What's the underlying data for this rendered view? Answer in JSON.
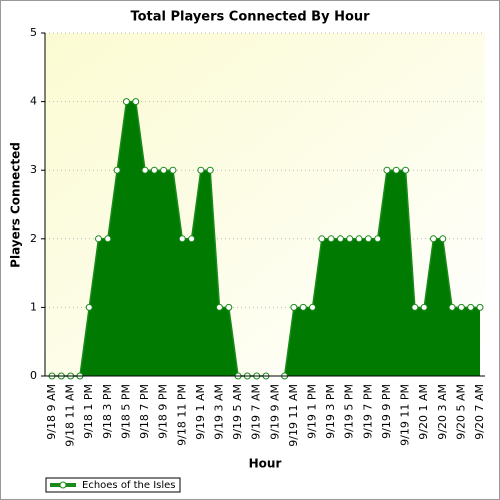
{
  "chart_data": {
    "type": "area",
    "title": "Total Players Connected By Hour",
    "x_label": "Hour",
    "y_label": "Players Connected",
    "categories": [
      "9/18 9 AM",
      null,
      "9/18 11 AM",
      null,
      "9/18 1 PM",
      null,
      "9/18 3 PM",
      null,
      "9/18 5 PM",
      null,
      "9/18 7 PM",
      null,
      "9/18 9 PM",
      null,
      "9/18 11 PM",
      null,
      "9/19 1 AM",
      null,
      "9/19 3 AM",
      null,
      "9/19 5 AM",
      null,
      "9/19 7 AM",
      null,
      "9/19 9 AM",
      null,
      "9/19 11 AM",
      null,
      "9/19 1 PM",
      null,
      "9/19 3 PM",
      null,
      "9/19 5 PM",
      null,
      "9/19 7 PM",
      null,
      "9/19 9 PM",
      null,
      "9/19 11 PM",
      null,
      "9/20 1 AM",
      null,
      "9/20 3 AM",
      null,
      "9/20 5 AM",
      null,
      "9/20 7 AM"
    ],
    "series": [
      {
        "name": "Echoes of the Isles",
        "color": "#1a8a1a",
        "values": [
          0,
          0,
          0,
          0,
          1,
          2,
          2,
          3,
          4,
          4,
          3,
          3,
          3,
          3,
          2,
          2,
          3,
          3,
          1,
          1,
          0,
          0,
          0,
          0,
          null,
          0,
          1,
          1,
          1,
          2,
          2,
          2,
          2,
          2,
          2,
          2,
          3,
          3,
          3,
          1,
          1,
          2,
          2,
          1,
          1,
          1,
          1
        ]
      }
    ],
    "ylim": [
      0,
      5
    ],
    "yticks": [
      0,
      1,
      2,
      3,
      4,
      5
    ],
    "grid": true,
    "legend": "bottom-left"
  }
}
